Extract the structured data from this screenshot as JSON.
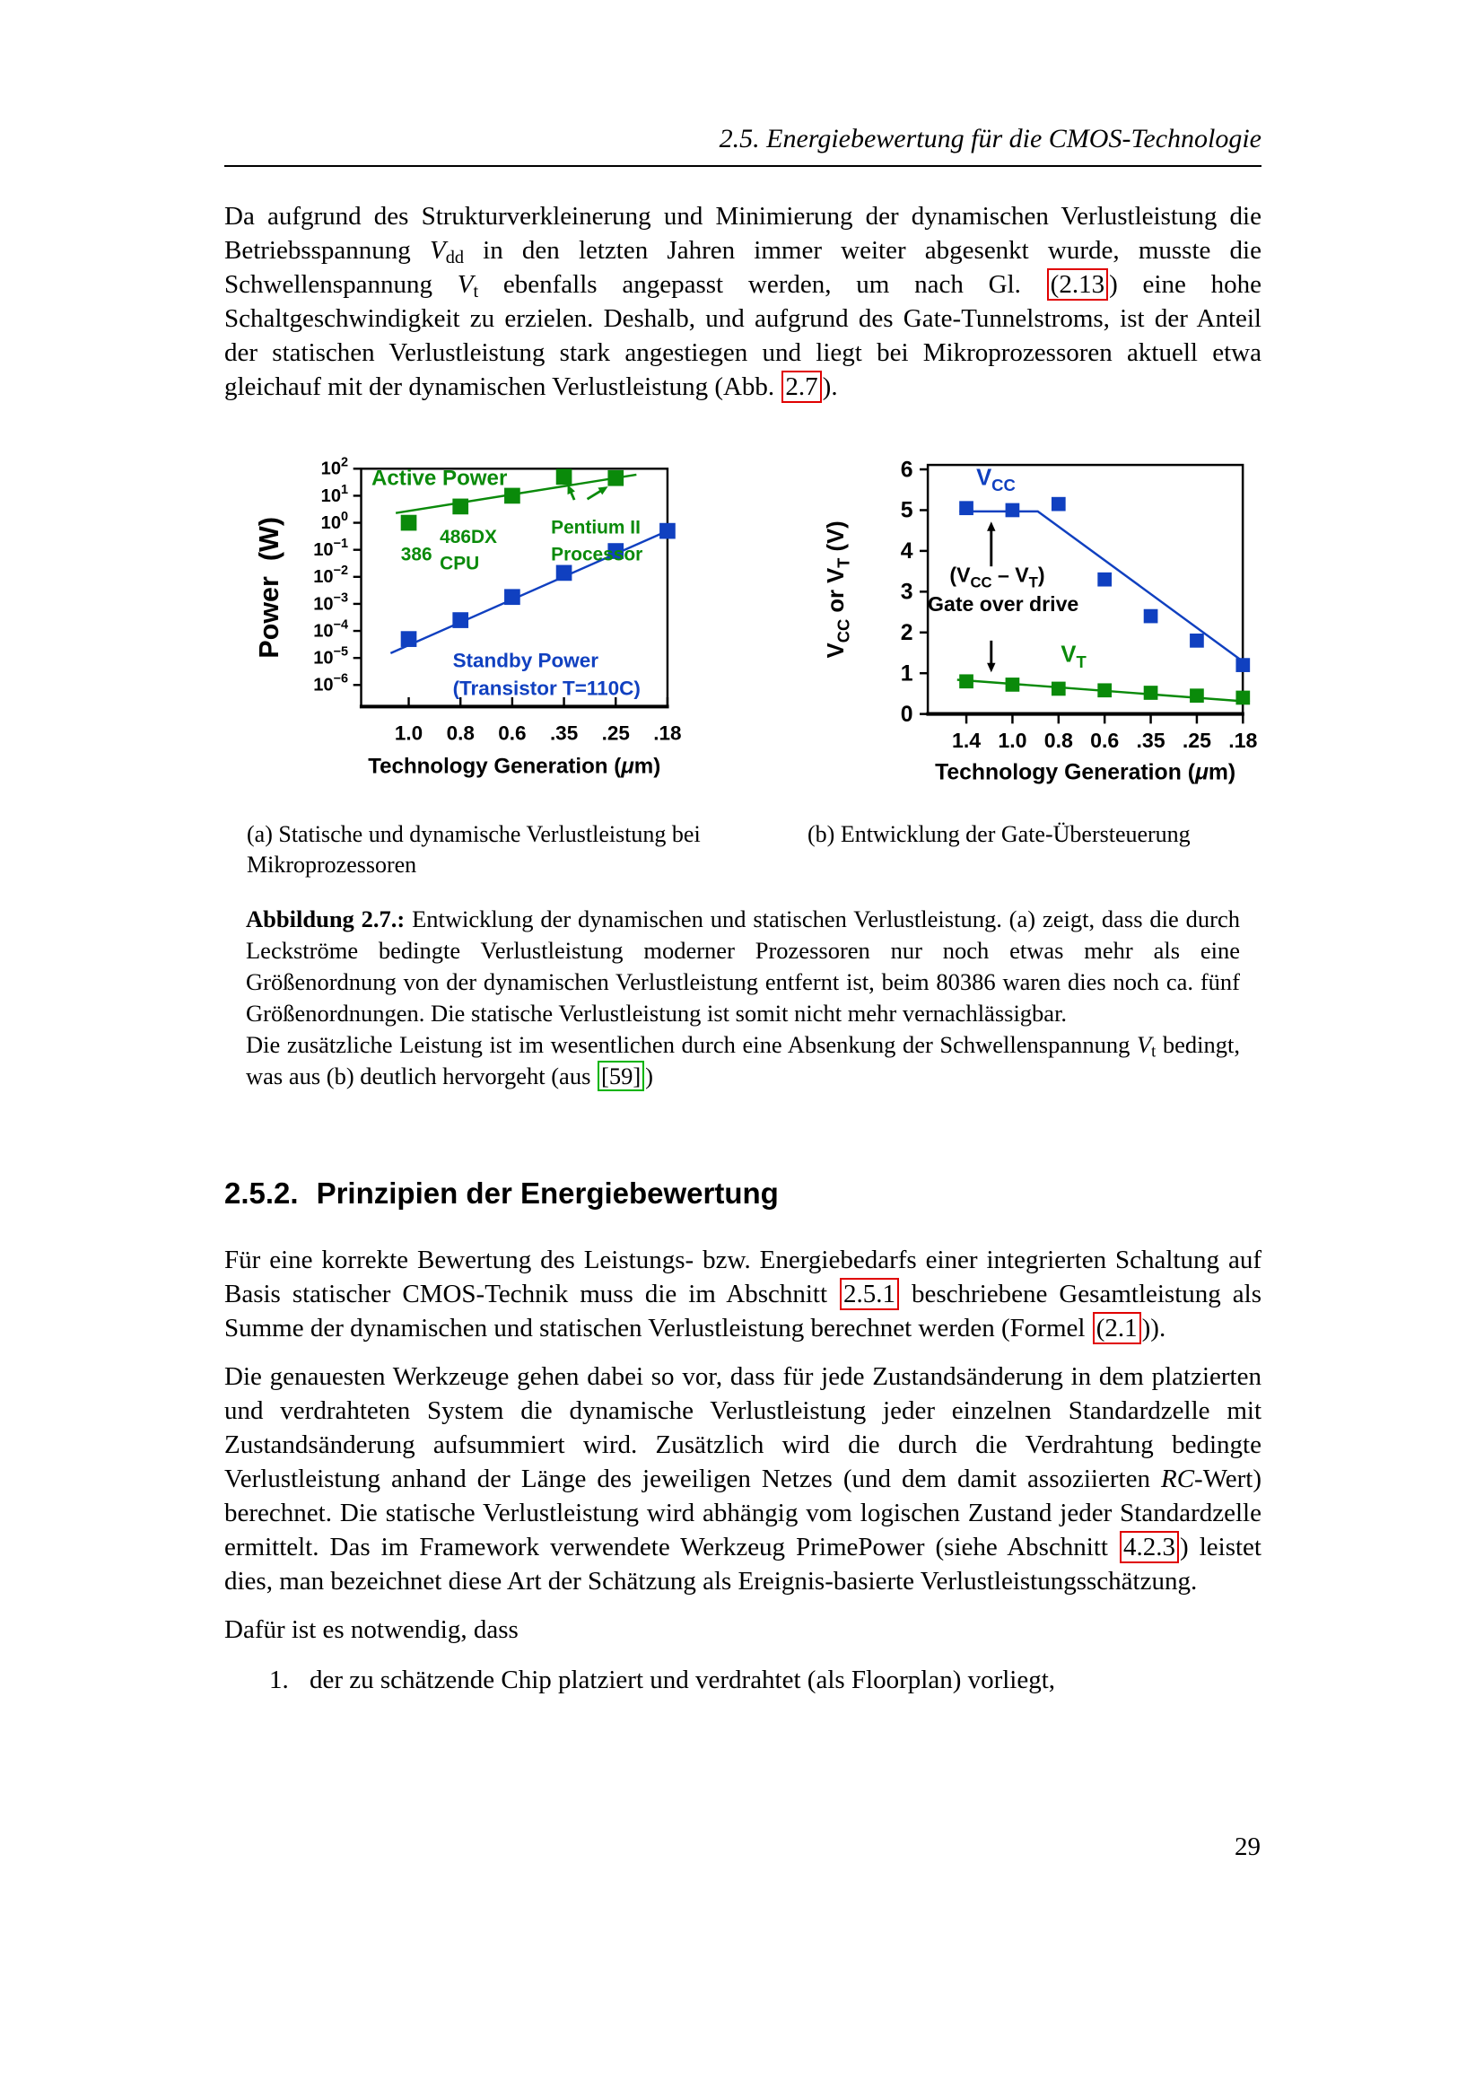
{
  "page": {
    "header": {
      "title": "2.5. Energiebewertung für die CMOS-Technologie"
    },
    "page_number": "29"
  },
  "colors": {
    "green": "#0a8a0a",
    "blue": "#1040c0",
    "black": "#000000",
    "link_red": "#e00000",
    "link_green": "#00b400"
  },
  "paragraphs": {
    "p1": [
      {
        "t": "Da aufgrund des Strukturverkleinerung und Minimierung der dynamischen Verlustleistung die Betriebsspannung "
      },
      {
        "t": "V",
        "k": "i"
      },
      {
        "t": "dd",
        "k": "sub"
      },
      {
        "t": " in den letzten Jahren immer weiter abgesenkt wurde, musste die Schwellenspannung "
      },
      {
        "t": "V",
        "k": "i"
      },
      {
        "t": "t",
        "k": "sub"
      },
      {
        "t": " ebenfalls angepasst werden, um nach Gl. "
      },
      {
        "t": "(2.13",
        "k": "refred"
      },
      {
        "t": ") eine hohe Schaltgeschwindigkeit zu erzielen. Deshalb, und aufgrund des Gate-Tunnelstroms, ist der Anteil der statischen Verlustleistung stark angestiegen und liegt bei Mikroprozessoren aktuell etwa gleichauf mit der dynamischen Verlustleistung (Abb. "
      },
      {
        "t": "2.7",
        "k": "refred"
      },
      {
        "t": ")."
      }
    ],
    "p2": [
      {
        "t": "Für eine korrekte Bewertung des Leistungs- bzw. Energiebedarfs einer integrierten Schaltung auf Basis statischer CMOS-Technik muss die im Abschnitt "
      },
      {
        "t": "2.5.1",
        "k": "refred"
      },
      {
        "t": " beschriebene Gesamtleistung als Summe der dynamischen und statischen Verlustleistung berechnet werden (Formel "
      },
      {
        "t": "(2.1",
        "k": "refred"
      },
      {
        "t": "))."
      }
    ],
    "p3": [
      {
        "t": "Die genauesten Werkzeuge gehen dabei so vor, dass für jede Zustandsänderung in dem platzierten und verdrahteten System die dynamische Verlustleistung jeder einzelnen Standardzelle mit Zustandsänderung aufsummiert wird. Zusätzlich wird die durch die Verdrahtung bedingte Verlustleistung anhand der Länge des jeweiligen Netzes (und dem damit assoziierten "
      },
      {
        "t": "RC",
        "k": "i"
      },
      {
        "t": "-Wert) berechnet. Die statische Verlustleistung wird abhängig vom logischen Zustand jeder Standardzelle ermittelt. Das im Framework verwendete Werkzeug PrimePower (siehe Abschnitt "
      },
      {
        "t": "4.2.3",
        "k": "refred"
      },
      {
        "t": ") leistet dies, man bezeichnet diese Art der Schätzung als Ereignis-basierte Verlustleistungsschätzung."
      }
    ],
    "p4_text": "Dafür ist es notwendig, dass",
    "list_marker_1": "1.",
    "list_item_1": "der zu schätzende Chip platziert und verdrahtet (als Floorplan) vorliegt,"
  },
  "section_heading": {
    "number": "2.5.2.",
    "title": "Prinzipien der Energiebewertung"
  },
  "figure": {
    "subcaption_a": "(a) Statische und dynamische Verlustleistung bei Mikroprozessoren",
    "subcaption_b": "(b) Entwicklung der Gate-Übersteuerung",
    "caption": [
      {
        "t": "Abbildung 2.7.:",
        "k": "b"
      },
      {
        "t": " Entwicklung der dynamischen und statischen Verlustleistung. (a) zeigt, dass die durch Leckströme bedingte Verlustleistung moderner Prozessoren nur noch etwas mehr als eine Größenordnung von der dynamischen Verlustleistung entfernt ist, beim 80386 waren dies noch ca. fünf Größenordnungen. Die statische Verlustleistung ist somit nicht mehr vernachlässigbar."
      },
      {
        "k": "br"
      },
      {
        "t": "Die zusätzliche Leistung ist im wesentlichen durch eine Absenkung der Schwellenspannung "
      },
      {
        "t": "V",
        "k": "i"
      },
      {
        "t": "t",
        "k": "sub"
      },
      {
        "t": " bedingt, was aus (b) deutlich hervorgeht (aus "
      },
      {
        "t": "[59]",
        "k": "refgreen"
      },
      {
        "t": ")"
      }
    ]
  },
  "chart_data": [
    {
      "id": "power",
      "type": "scatter",
      "title": "",
      "xlabel_segments": [
        {
          "t": "Technology Generation ("
        },
        {
          "t": "μ",
          "k": "i"
        },
        {
          "t": "m)"
        }
      ],
      "ylabel_segments": [
        {
          "t": "Power  (W)"
        }
      ],
      "x_categories": [
        "1.0",
        "0.8",
        "0.6",
        ".35",
        ".25",
        ".18"
      ],
      "y_scale": "log",
      "ylim": [
        1e-06,
        100
      ],
      "y_ticks_exponents": [
        2,
        1,
        0,
        -1,
        -2,
        -3,
        -4,
        -5,
        -6
      ],
      "grid": false,
      "legend": "labels inside plot",
      "series": [
        {
          "name": "Active Power",
          "color_key": "green",
          "marker": "square",
          "points": [
            [
              0,
              1
            ],
            [
              1,
              4
            ],
            [
              2,
              10
            ],
            [
              3,
              50
            ],
            [
              4,
              45
            ]
          ],
          "trend": [
            [
              -0.25,
              2.3
            ],
            [
              4.4,
              60
            ]
          ]
        },
        {
          "name": "Standby Power (Transistor T=110C)",
          "color_key": "blue",
          "marker": "square",
          "points": [
            [
              0,
              5e-05
            ],
            [
              1,
              0.00025
            ],
            [
              2,
              0.0018
            ],
            [
              3,
              0.014
            ],
            [
              4,
              0.09
            ],
            [
              5,
              0.5
            ]
          ],
          "trend": [
            [
              -0.35,
              1.5e-05
            ],
            [
              5,
              0.5
            ]
          ]
        }
      ],
      "annotations": [
        {
          "lines": [
            [
              {
                "t": "Active Power"
              }
            ]
          ],
          "color_key": "green",
          "x": -0.72,
          "y": 25,
          "size": 30,
          "anchor": "start"
        },
        {
          "lines": [
            [
              {
                "t": "386"
              }
            ]
          ],
          "color_key": "green",
          "x": 0.15,
          "y": 0.041,
          "size": 26,
          "anchor": "middle"
        },
        {
          "lines": [
            [
              {
                "t": "486DX"
              }
            ],
            [
              {
                "t": "CPU"
              }
            ]
          ],
          "color_key": "green",
          "x": 0.6,
          "y": 0.18,
          "size": 26,
          "anchor": "start",
          "lh": 37
        },
        {
          "lines": [
            [
              {
                "t": "Pentium II"
              }
            ],
            [
              {
                "t": "Processor"
              }
            ]
          ],
          "color_key": "green",
          "x": 2.75,
          "y": 0.4,
          "size": 26,
          "anchor": "start",
          "lh": 37
        },
        {
          "lines": [
            [
              {
                "t": "Standby Power"
              }
            ],
            [
              {
                "t": "(Transistor T=110C)"
              }
            ]
          ],
          "color_key": "blue",
          "x": 0.85,
          "y": 4.6e-06,
          "size": 28,
          "anchor": "start",
          "lh": 39
        }
      ],
      "arrows": [
        {
          "from": [
            3.2,
            7
          ],
          "to": [
            3.07,
            26
          ],
          "color_key": "green"
        },
        {
          "from": [
            3.45,
            7.5
          ],
          "to": [
            3.85,
            22
          ],
          "color_key": "green"
        }
      ]
    },
    {
      "id": "voltage",
      "type": "scatter",
      "title": "",
      "xlabel_segments": [
        {
          "t": "Technology Generation ("
        },
        {
          "t": "μ",
          "k": "i"
        },
        {
          "t": "m)"
        }
      ],
      "ylabel_segments": [
        {
          "t": "V"
        },
        {
          "t": "CC",
          "k": "sub"
        },
        {
          "t": " or V"
        },
        {
          "t": "T",
          "k": "sub"
        },
        {
          "t": " (V)"
        }
      ],
      "x_categories": [
        "1.4",
        "1.0",
        "0.8",
        "0.6",
        ".35",
        ".25",
        ".18"
      ],
      "y_scale": "linear",
      "ylim": [
        0,
        6
      ],
      "y_ticks": [
        0,
        1,
        2,
        3,
        4,
        5,
        6
      ],
      "grid": false,
      "legend": "labels inside plot",
      "series": [
        {
          "name": "VCC",
          "color_key": "blue",
          "marker": "square",
          "points": [
            [
              0,
              5.05
            ],
            [
              1,
              5.0
            ],
            [
              2,
              5.15
            ],
            [
              3,
              3.3
            ],
            [
              4,
              2.4
            ],
            [
              5,
              1.8
            ],
            [
              6,
              1.2
            ]
          ],
          "trend": [
            [
              -0.15,
              4.97
            ],
            [
              1.55,
              4.97
            ],
            [
              5.95,
              1.33
            ]
          ]
        },
        {
          "name": "VT",
          "color_key": "green",
          "marker": "square",
          "points": [
            [
              0,
              0.8
            ],
            [
              1,
              0.72
            ],
            [
              2,
              0.62
            ],
            [
              3,
              0.58
            ],
            [
              4,
              0.52
            ],
            [
              5,
              0.45
            ],
            [
              6,
              0.4
            ]
          ],
          "trend": [
            [
              -0.2,
              0.84
            ],
            [
              6.15,
              0.3
            ]
          ]
        }
      ],
      "annotations": [
        {
          "lines": [
            [
              {
                "t": "V"
              },
              {
                "t": "CC",
                "k": "sub"
              }
            ]
          ],
          "color_key": "blue",
          "x": 0.64,
          "y": 5.62,
          "size": 31,
          "anchor": "middle"
        },
        {
          "lines": [
            [
              {
                "t": "(V"
              },
              {
                "t": "CC",
                "k": "sub"
              },
              {
                "t": " – V"
              },
              {
                "t": "T",
                "k": "sub"
              },
              {
                "t": ")"
              }
            ]
          ],
          "color_key": "black",
          "x": 0.67,
          "y": 3.24,
          "size": 28,
          "anchor": "middle"
        },
        {
          "lines": [
            [
              {
                "t": "Gate over drive"
              }
            ]
          ],
          "color_key": "black",
          "x": 0.8,
          "y": 2.52,
          "size": 28,
          "anchor": "middle"
        },
        {
          "lines": [
            [
              {
                "t": "V"
              },
              {
                "t": "T",
                "k": "sub"
              }
            ]
          ],
          "color_key": "green",
          "x": 2.05,
          "y": 1.28,
          "size": 31,
          "anchor": "start"
        }
      ],
      "arrows": [
        {
          "from": [
            0.54,
            3.62
          ],
          "to": [
            0.54,
            4.72
          ],
          "color_key": "black"
        },
        {
          "from": [
            0.54,
            1.8
          ],
          "to": [
            0.54,
            1.02
          ],
          "color_key": "black"
        }
      ]
    }
  ]
}
